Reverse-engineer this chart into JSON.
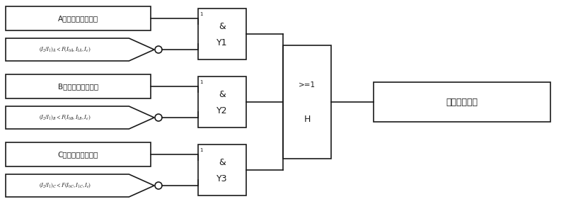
{
  "background": "#ffffff",
  "line_color": "#1a1a1a",
  "fig_width": 8.0,
  "fig_height": 2.88,
  "dpi": 100,
  "relay_labels": [
    "A相差动继电器动作",
    "B相差动继电器动作",
    "C相差动继电器动作"
  ],
  "formula_labels_math": [
    "$(I_2/I_1)_A<F(I_{0A},I_{1A},I_e)$",
    "$(I_2/I_1)_B<F(I_{0B},I_{1B},I_e)$",
    "$(I_2/I_1)_C<F(I_{0C},I_{1C},I_e)$"
  ],
  "and_labels": [
    "Y1",
    "Y2",
    "Y3"
  ],
  "or_top": ">=1",
  "or_bot": "H",
  "output_label": "差动保护跳闸"
}
